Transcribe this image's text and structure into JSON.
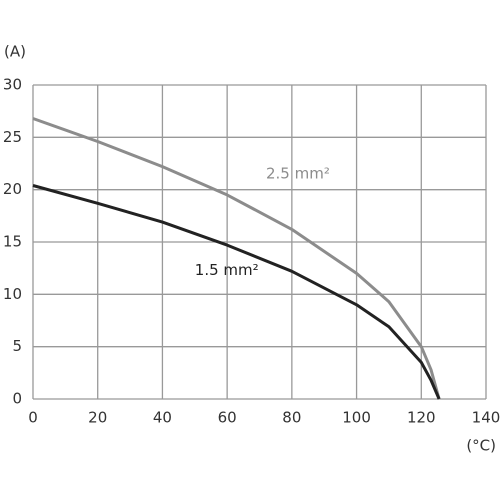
{
  "chart_data": {
    "type": "line",
    "y_label": "(A)",
    "x_label": "(°C)",
    "x": [
      0,
      20,
      40,
      60,
      80,
      100,
      110,
      120,
      123,
      125.5
    ],
    "series": [
      {
        "name": "2.5 mm²",
        "color": "#8c8c8c",
        "values": [
          26.8,
          24.6,
          22.2,
          19.5,
          16.2,
          12,
          9.3,
          5,
          2.8,
          0
        ]
      },
      {
        "name": "1.5 mm²",
        "color": "#222222",
        "values": [
          20.4,
          18.7,
          16.9,
          14.7,
          12.2,
          9,
          6.9,
          3.5,
          1.8,
          0
        ]
      }
    ],
    "xlim": [
      0,
      140
    ],
    "xticks": [
      0,
      20,
      40,
      60,
      80,
      100,
      120,
      140
    ],
    "ylim": [
      0,
      30
    ],
    "yticks": [
      0,
      5,
      10,
      15,
      20,
      25,
      30
    ],
    "grid": true
  }
}
